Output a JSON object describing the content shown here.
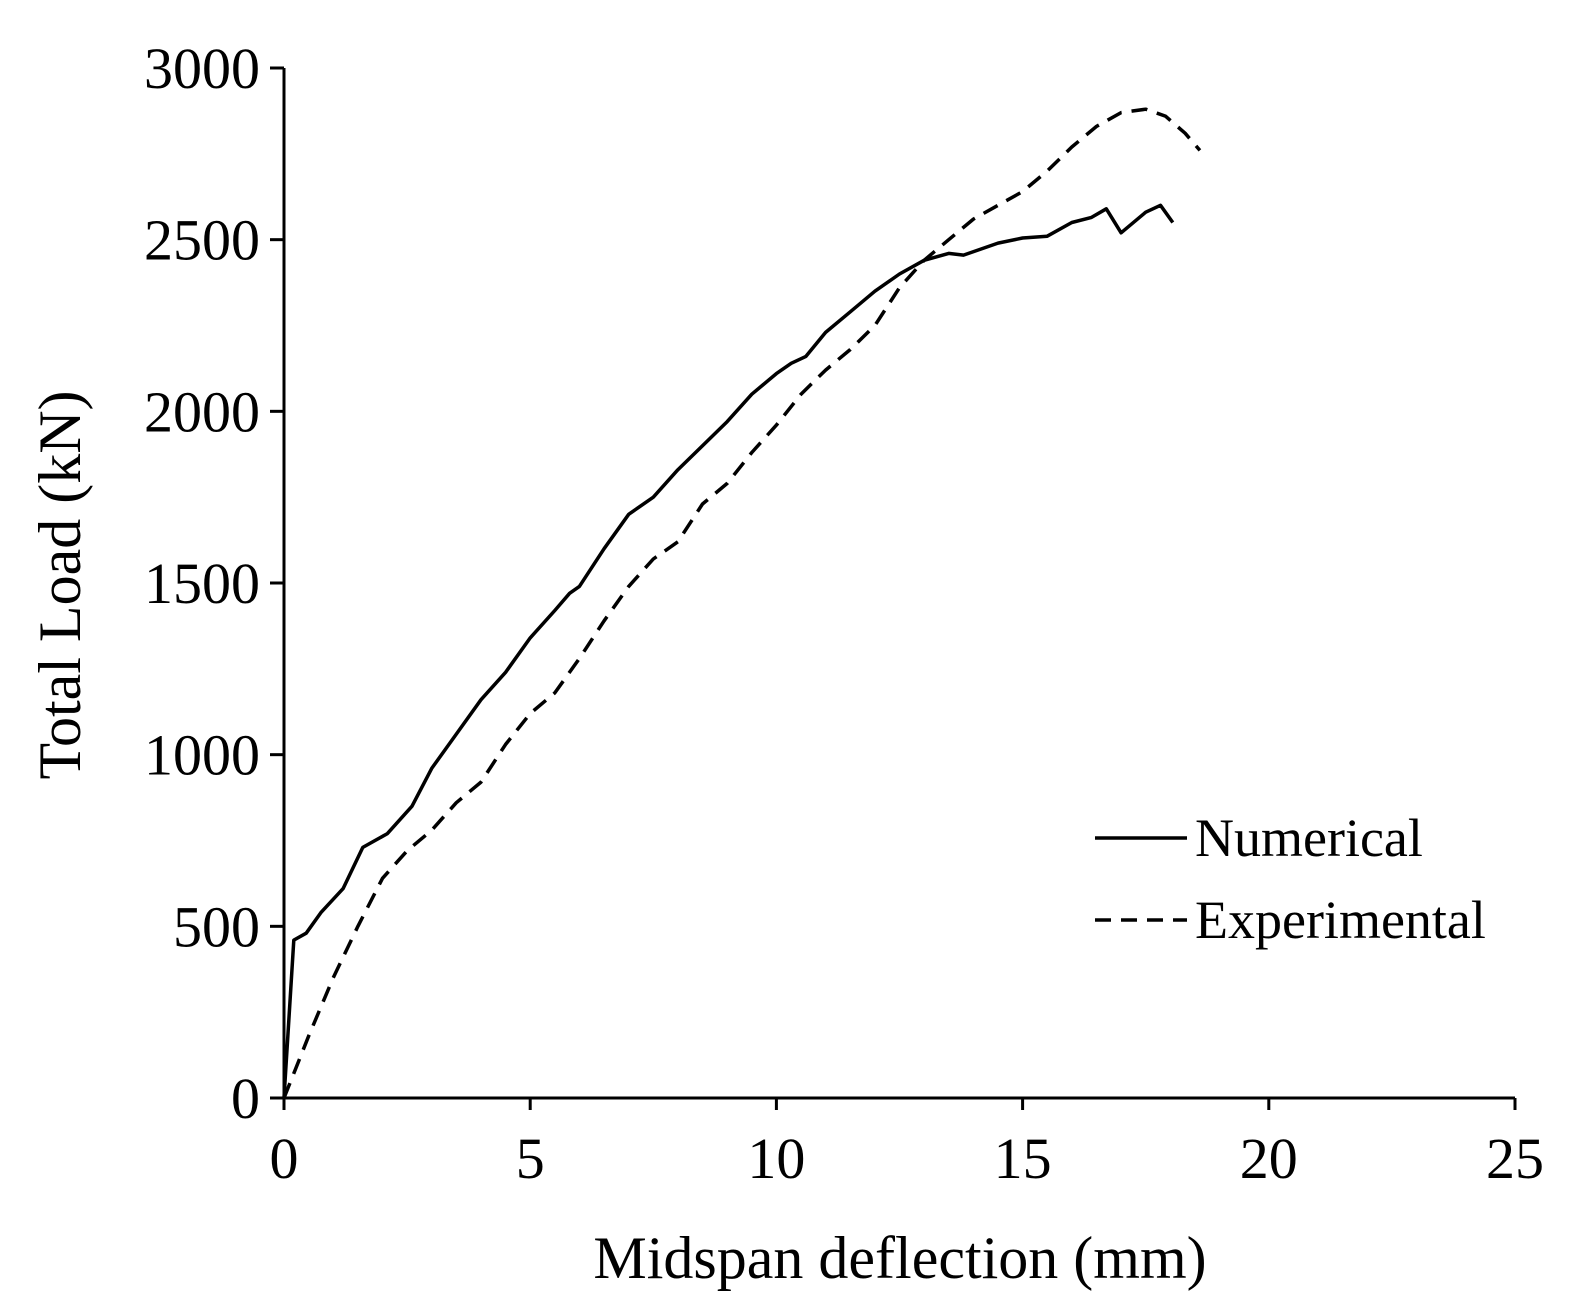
{
  "chart_data": {
    "type": "line",
    "title": "",
    "xlabel": "Midspan deflection (mm)",
    "ylabel": "Total Load (kN)",
    "xlim": [
      0,
      25
    ],
    "ylim": [
      0,
      3000
    ],
    "xticks": [
      0,
      5,
      10,
      15,
      20,
      25
    ],
    "yticks": [
      0,
      500,
      1000,
      1500,
      2000,
      2500,
      3000
    ],
    "xtick_labels": [
      "0",
      "5",
      "10",
      "15",
      "20",
      "25"
    ],
    "ytick_labels": [
      "0",
      "500",
      "1000",
      "1500",
      "2000",
      "2500",
      "3000"
    ],
    "grid": false,
    "legend_position": "right",
    "series": [
      {
        "name": "Numerical",
        "style": "solid",
        "color": "#000000",
        "x": [
          0,
          0.2,
          0.45,
          0.75,
          1.2,
          1.6,
          2.1,
          2.6,
          3.0,
          3.5,
          4.0,
          4.5,
          5.0,
          5.5,
          5.8,
          6.0,
          6.5,
          7.0,
          7.5,
          8.0,
          8.5,
          9.0,
          9.5,
          10.0,
          10.3,
          10.6,
          11.0,
          11.5,
          12.0,
          12.5,
          13.0,
          13.5,
          13.8,
          14.5,
          15.0,
          15.5,
          16.0,
          16.4,
          16.7,
          17.0,
          17.5,
          17.8,
          18.05
        ],
        "y": [
          0,
          460,
          480,
          540,
          610,
          730,
          770,
          850,
          960,
          1060,
          1160,
          1240,
          1340,
          1420,
          1470,
          1490,
          1600,
          1700,
          1750,
          1830,
          1900,
          1970,
          2050,
          2110,
          2140,
          2160,
          2230,
          2290,
          2350,
          2400,
          2440,
          2460,
          2455,
          2490,
          2505,
          2510,
          2550,
          2565,
          2590,
          2520,
          2580,
          2600,
          2550
        ]
      },
      {
        "name": "Experimental",
        "style": "dashed",
        "color": "#000000",
        "x": [
          0,
          0.5,
          1.0,
          1.5,
          2.0,
          2.5,
          3.0,
          3.5,
          4.0,
          4.5,
          5.0,
          5.5,
          6.0,
          6.5,
          7.0,
          7.5,
          8.0,
          8.5,
          9.0,
          9.5,
          10.0,
          10.5,
          11.0,
          11.5,
          12.0,
          12.5,
          13.0,
          13.5,
          14.0,
          14.5,
          15.0,
          15.5,
          16.0,
          16.5,
          17.0,
          17.5,
          17.9,
          18.3,
          18.6
        ],
        "y": [
          0,
          180,
          350,
          500,
          640,
          720,
          780,
          860,
          920,
          1030,
          1120,
          1180,
          1280,
          1390,
          1490,
          1570,
          1620,
          1730,
          1790,
          1880,
          1960,
          2050,
          2120,
          2180,
          2250,
          2360,
          2440,
          2500,
          2560,
          2600,
          2640,
          2700,
          2770,
          2830,
          2870,
          2880,
          2860,
          2810,
          2760
        ]
      }
    ]
  }
}
